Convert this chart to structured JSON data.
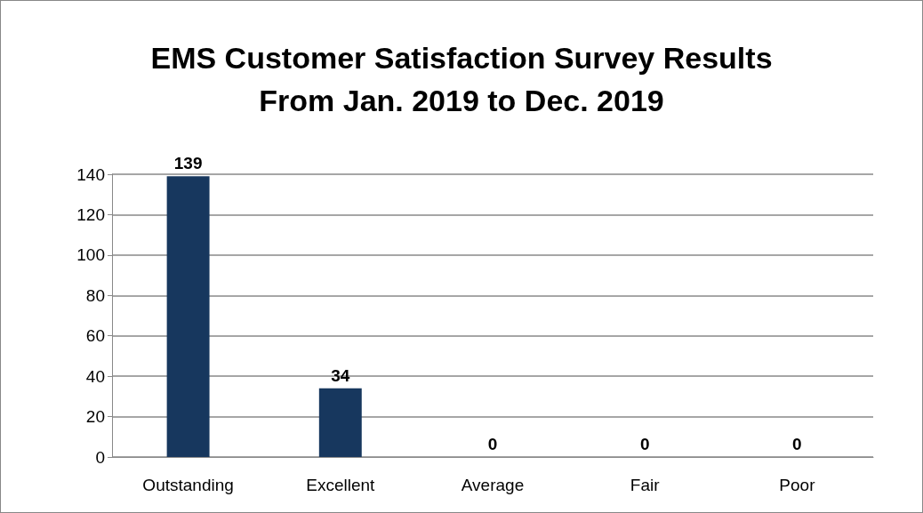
{
  "chart_data": {
    "type": "bar",
    "title": "EMS Customer Satisfaction Survey Results\nFrom Jan. 2019 to Dec. 2019",
    "categories": [
      "Outstanding",
      "Excellent",
      "Average",
      "Fair",
      "Poor"
    ],
    "values": [
      139,
      34,
      0,
      0,
      0
    ],
    "color": "#17375e",
    "ylim": [
      0,
      140
    ],
    "yticks": [
      0,
      20,
      40,
      60,
      80,
      100,
      120,
      140
    ],
    "grid": "y",
    "data_labels": true
  }
}
